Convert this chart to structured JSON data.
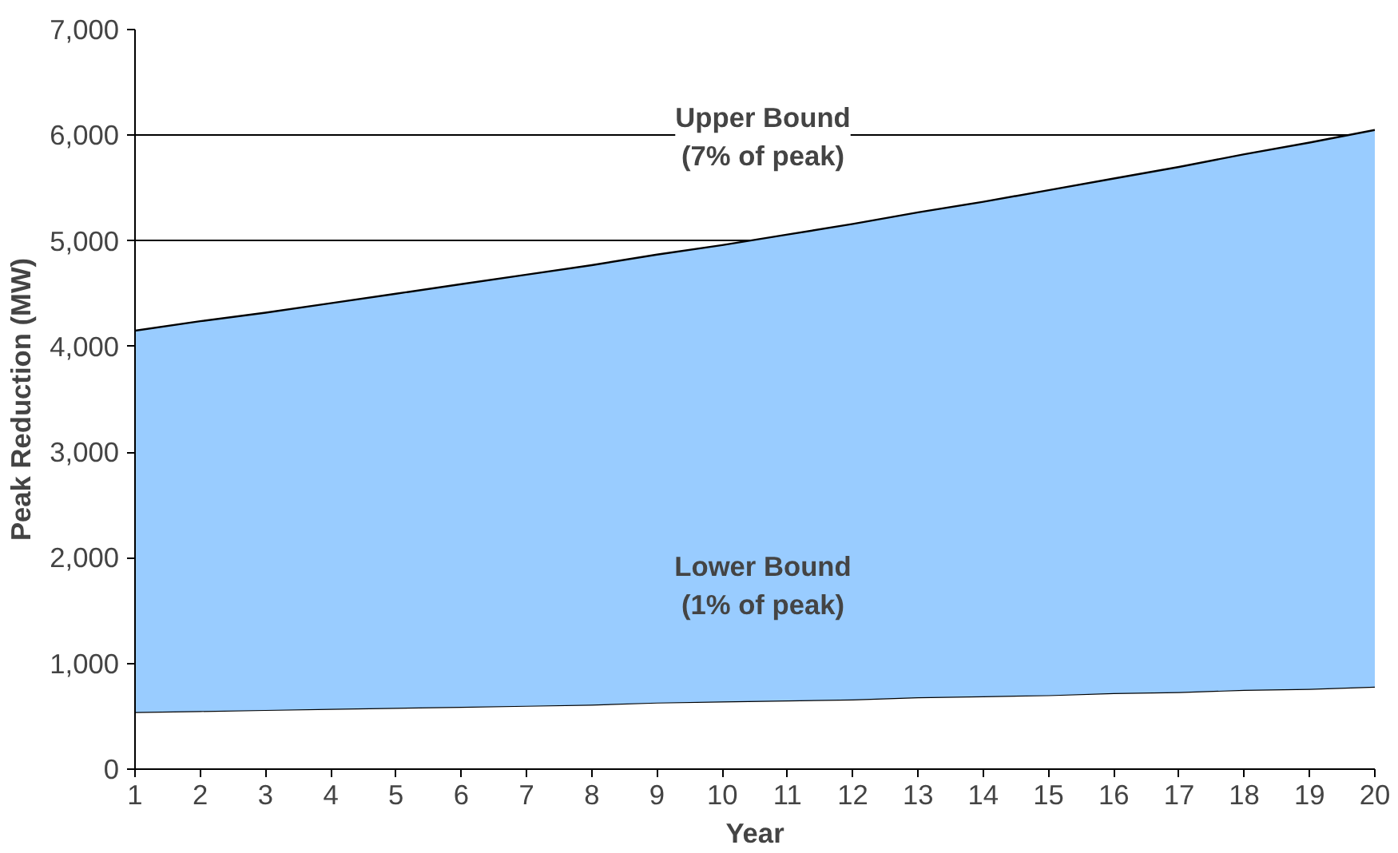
{
  "chart_data": {
    "type": "area",
    "stacked": true,
    "xlabel": "Year",
    "ylabel": "Peak Reduction (MW)",
    "x": [
      1,
      2,
      3,
      4,
      5,
      6,
      7,
      8,
      9,
      10,
      11,
      12,
      13,
      14,
      15,
      16,
      17,
      18,
      19,
      20
    ],
    "series": [
      {
        "color": "#ffffff",
        "values": [
          540,
          550,
          560,
          570,
          580,
          590,
          600,
          610,
          630,
          640,
          650,
          660,
          680,
          690,
          700,
          720,
          730,
          750,
          760,
          780
        ]
      },
      {
        "color": "#99ccff",
        "values": [
          3610,
          3690,
          3760,
          3840,
          3920,
          4000,
          4080,
          4160,
          4240,
          4320,
          4410,
          4500,
          4590,
          4680,
          4780,
          4870,
          4970,
          5070,
          5170,
          5270
        ]
      }
    ],
    "annotations": [
      "Upper Bound\n(7% of peak)",
      "Lower Bound\n(1% of peak)"
    ],
    "xlim": [
      1,
      20
    ],
    "ylim": [
      0,
      7000
    ],
    "xticks": [
      1,
      2,
      3,
      4,
      5,
      6,
      7,
      8,
      9,
      10,
      11,
      12,
      13,
      14,
      15,
      16,
      17,
      18,
      19,
      20
    ],
    "yticks": [
      0,
      {
        "value": 1000,
        "label": "1,000"
      },
      {
        "value": 2000,
        "label": "2,000"
      },
      {
        "value": 3000,
        "label": "3,000"
      },
      {
        "value": 4000,
        "label": "4,000"
      },
      {
        "value": 5000,
        "label": "5,000"
      },
      {
        "value": 6000,
        "label": "6,000"
      },
      {
        "value": 7000,
        "label": "7,000"
      }
    ],
    "grid": "y"
  }
}
